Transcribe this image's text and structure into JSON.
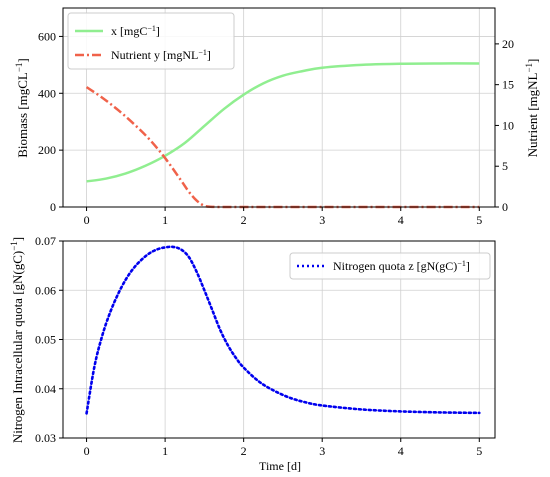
{
  "chart_data": [
    {
      "type": "line",
      "xlabel": "",
      "ylabel": "Biomass [mgCL^-1]",
      "ylabel_right": "Nutrient [mgNL^-1]",
      "xlim": [
        -0.3,
        5.2
      ],
      "ylim": [
        0,
        700
      ],
      "ylim_right": [
        0,
        24.4
      ],
      "x_ticks": [
        "0",
        "1",
        "2",
        "3",
        "4",
        "5"
      ],
      "y_ticks": [
        "0",
        "200",
        "400",
        "600"
      ],
      "y_ticks_right": [
        "0",
        "5",
        "10",
        "15",
        "20"
      ],
      "grid": true,
      "legend_position": "top-left",
      "series": [
        {
          "name": "x [mgC^-1]",
          "axis": "left",
          "color": "#90ee90",
          "style": "solid",
          "x": [
            0,
            0.25,
            0.5,
            0.75,
            1.0,
            1.25,
            1.5,
            1.75,
            2.0,
            2.25,
            2.5,
            2.75,
            3.0,
            3.5,
            4.0,
            4.5,
            5.0
          ],
          "y": [
            90,
            100,
            118,
            145,
            180,
            225,
            285,
            345,
            395,
            435,
            462,
            478,
            490,
            500,
            504,
            505,
            505
          ]
        },
        {
          "name": "Nutrient y [mgNL^-1]",
          "axis": "right",
          "color": "#f0624a",
          "style": "dashdot",
          "x": [
            0,
            0.2,
            0.4,
            0.6,
            0.8,
            1.0,
            1.2,
            1.3,
            1.4,
            1.5,
            1.6,
            1.8,
            2.0,
            3.0,
            4.0,
            5.0
          ],
          "y": [
            14.7,
            13.4,
            11.9,
            10.2,
            8.3,
            6.0,
            3.3,
            1.9,
            0.8,
            0.15,
            0.02,
            0,
            0,
            0,
            0,
            0
          ]
        }
      ]
    },
    {
      "type": "line",
      "xlabel": "Time [d]",
      "ylabel": "Nitrogen Intracellular quota [gN(gC)^-1]",
      "xlim": [
        -0.3,
        5.2
      ],
      "ylim": [
        0.03,
        0.07
      ],
      "x_ticks": [
        "0",
        "1",
        "2",
        "3",
        "4",
        "5"
      ],
      "y_ticks": [
        "0.03",
        "0.04",
        "0.05",
        "0.06",
        "0.07"
      ],
      "grid": true,
      "legend_position": "top-right",
      "series": [
        {
          "name": "Nitrogen quota z [gN(gC)^-1]",
          "axis": "left",
          "color": "#0000ee",
          "style": "dotted",
          "x": [
            0,
            0.1,
            0.2,
            0.3,
            0.4,
            0.5,
            0.6,
            0.7,
            0.8,
            0.9,
            1.0,
            1.1,
            1.2,
            1.3,
            1.4,
            1.5,
            1.6,
            1.7,
            1.8,
            1.9,
            2.0,
            2.2,
            2.4,
            2.6,
            2.8,
            3.0,
            3.5,
            4.0,
            4.5,
            5.0
          ],
          "y": [
            0.035,
            0.0445,
            0.0508,
            0.0555,
            0.0592,
            0.0622,
            0.0645,
            0.0662,
            0.0675,
            0.0683,
            0.0687,
            0.0688,
            0.0683,
            0.0668,
            0.0638,
            0.06,
            0.056,
            0.052,
            0.0488,
            0.0463,
            0.0443,
            0.0414,
            0.0395,
            0.0381,
            0.0372,
            0.0366,
            0.0358,
            0.0354,
            0.0352,
            0.0351
          ]
        }
      ]
    }
  ]
}
